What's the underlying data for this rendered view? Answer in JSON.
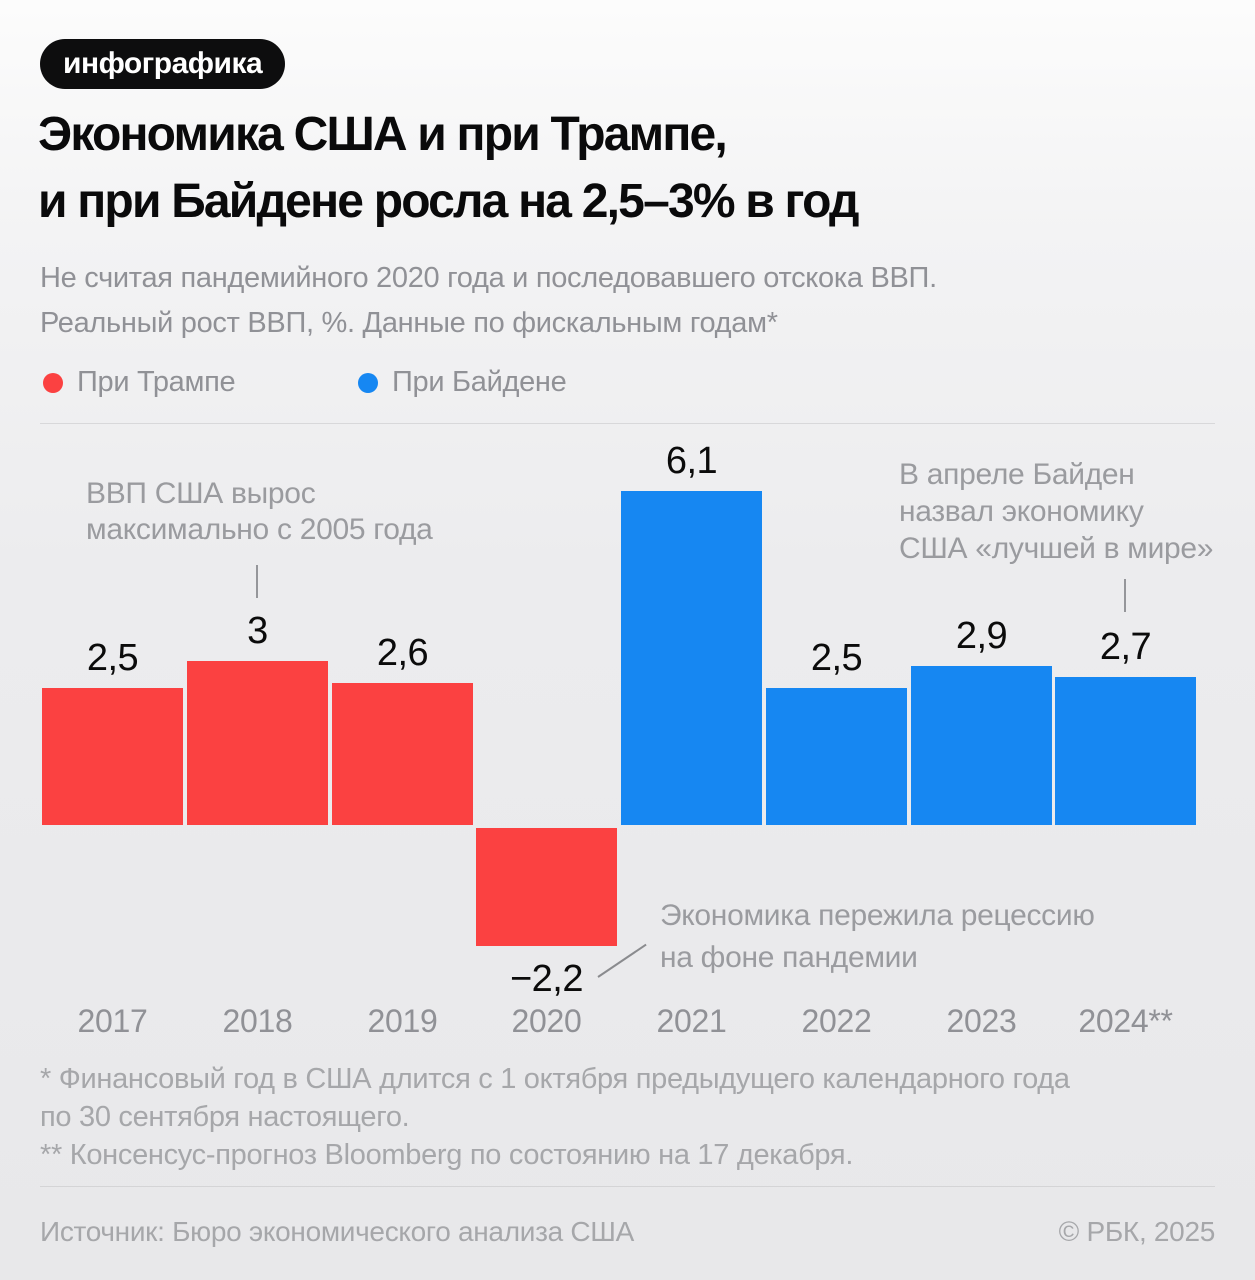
{
  "badge": {
    "label": "инфографика"
  },
  "title": {
    "line1": "Экономика США и при Трампе,",
    "line2": "и при Байдене росла на 2,5–3% в год"
  },
  "subtitle": {
    "line1": "Не считая пандемийного 2020 года и последовавшего отскока ВВП.",
    "line2": "Реальный рост ВВП, %. Данные по фискальным годам*"
  },
  "legend": [
    {
      "label": "При Трампе",
      "color": "#FB4141"
    },
    {
      "label": "При Байдене",
      "color": "#1687F2"
    }
  ],
  "chart_data": {
    "type": "bar",
    "title": "Экономика США и при Трампе, и при Байдене росла на 2,5–3% в год",
    "subtitle": "Реальный рост ВВП, %. Данные по фискальным годам*",
    "xlabel": "",
    "ylabel": "Реальный рост ВВП, %",
    "categories": [
      "2017",
      "2018",
      "2019",
      "2020",
      "2021",
      "2022",
      "2023",
      "2024**"
    ],
    "values": [
      2.5,
      3,
      2.6,
      -2.2,
      6.1,
      2.5,
      2.9,
      2.7
    ],
    "value_labels": [
      "2,5",
      "3",
      "2,6",
      "−2,2",
      "6,1",
      "2,5",
      "2,9",
      "2,7"
    ],
    "groups": [
      "trump",
      "trump",
      "trump",
      "trump",
      "biden",
      "biden",
      "biden",
      "biden"
    ],
    "colors": {
      "trump": "#FB4141",
      "biden": "#1687F2"
    },
    "series": [
      {
        "name": "При Трампе",
        "categories": [
          "2017",
          "2018",
          "2019",
          "2020"
        ],
        "values": [
          2.5,
          3,
          2.6,
          -2.2
        ]
      },
      {
        "name": "При Байдене",
        "categories": [
          "2021",
          "2022",
          "2023",
          "2024**"
        ],
        "values": [
          6.1,
          2.5,
          2.9,
          2.7
        ]
      }
    ],
    "ylim": [
      -2.5,
      6.5
    ],
    "grid": false,
    "legend_position": "top-left"
  },
  "annotations": {
    "gdp2018": {
      "line1": "ВВП США вырос",
      "line2": "максимально с 2005 года"
    },
    "biden2024": {
      "line1": "В апреле Байден",
      "line2": "назвал экономику",
      "line3": "США «лучшей в мире»"
    },
    "recession2020": {
      "line1": "Экономика пережила рецессию",
      "line2": "на фоне пандемии"
    }
  },
  "footnotes": {
    "line1": "* Финансовый год в США длится с 1 октября предыдущего календарного года",
    "line2": "по 30 сентября настоящего.",
    "line3": "** Консенсус-прогноз Bloomberg по состоянию на 17 декабря."
  },
  "source": {
    "left": "Источник: Бюро экономического анализа США",
    "right": "© РБК, 2025"
  }
}
